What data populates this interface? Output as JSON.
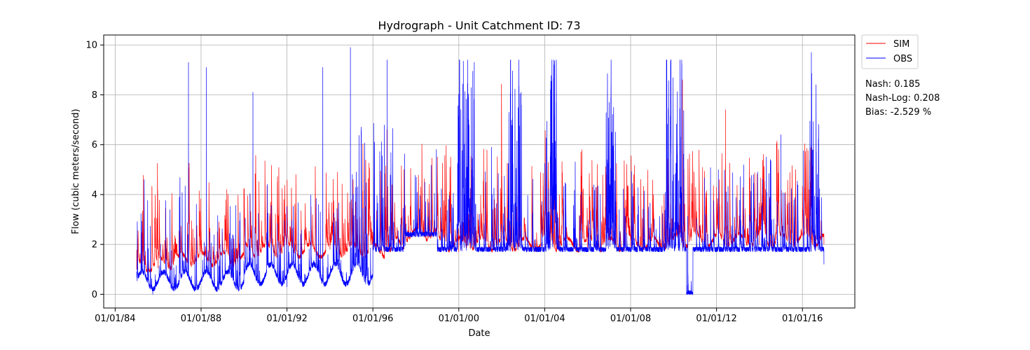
{
  "chart_data": {
    "type": "line",
    "title": "Hydrograph - Unit Catchment ID: 73",
    "xlabel": "Date",
    "ylabel": "Flow (cubic meters/second)",
    "x_ticks": [
      "01/01/84",
      "01/01/88",
      "01/01/92",
      "01/01/96",
      "01/01/00",
      "01/01/04",
      "01/01/08",
      "01/01/12",
      "01/01/16"
    ],
    "x_range": [
      "1983-06-20",
      "2018-06-10"
    ],
    "x_data_range": [
      "1985-01-01",
      "2017-01-01"
    ],
    "y_ticks": [
      0,
      2,
      4,
      6,
      8,
      10
    ],
    "ylim": [
      -0.55,
      10.4
    ],
    "grid": true,
    "legend_position": "outside-top-right",
    "series": [
      {
        "name": "SIM",
        "color": "#ff0000",
        "summary": "daily simulated flow; baseflow ~1.0-1.5 in 1985-1990, ~1.5-2.5 afterwards; peaks mostly 3-5, max ~8.6 in 2010",
        "keypoints": [
          {
            "x": "1985-01-01",
            "y": 1.0
          },
          {
            "x": "1986-01-01",
            "y": 1.05
          },
          {
            "x": "1987-01-01",
            "y": 1.5
          },
          {
            "x": "1988-01-01",
            "y": 1.6
          },
          {
            "x": "1990-01-01",
            "y": 1.4
          },
          {
            "x": "1992-01-01",
            "y": 2.0
          },
          {
            "x": "1994-01-01",
            "y": 1.8
          },
          {
            "x": "1996-01-01",
            "y": 1.8
          },
          {
            "x": "1998-01-01",
            "y": 2.3
          },
          {
            "x": "2000-01-01",
            "y": 1.7
          },
          {
            "x": "2002-01-01",
            "y": 1.9
          },
          {
            "x": "2004-01-01",
            "y": 1.9
          },
          {
            "x": "2006-01-01",
            "y": 1.8
          },
          {
            "x": "2008-01-01",
            "y": 1.9
          },
          {
            "x": "2010-06-01",
            "y": 8.6
          },
          {
            "x": "2012-06-01",
            "y": 7.4
          },
          {
            "x": "2014-01-01",
            "y": 2.0
          },
          {
            "x": "2016-06-01",
            "y": 2.2
          },
          {
            "x": "2017-01-01",
            "y": 2.0
          }
        ]
      },
      {
        "name": "OBS",
        "color": "#0000ff",
        "summary": "daily observed flow; low flows ~0.3-1.0 before 1996, ~1.5-2.5 afterwards; frequent spikes capped near 9.4; max ~9.9 in 1995; near 0 in late 2010",
        "keypoints": [
          {
            "x": "1985-01-01",
            "y": 0.9
          },
          {
            "x": "1985-10-01",
            "y": 0.0
          },
          {
            "x": "1987-06-01",
            "y": 9.3
          },
          {
            "x": "1988-04-01",
            "y": 9.1
          },
          {
            "x": "1990-06-01",
            "y": 8.1
          },
          {
            "x": "1992-01-01",
            "y": 0.3
          },
          {
            "x": "1993-09-01",
            "y": 9.1
          },
          {
            "x": "1994-12-15",
            "y": 9.9
          },
          {
            "x": "1996-09-01",
            "y": 9.4
          },
          {
            "x": "1998-06-01",
            "y": 4.5
          },
          {
            "x": "2000-06-01",
            "y": 9.4
          },
          {
            "x": "2002-06-01",
            "y": 9.4
          },
          {
            "x": "2004-06-01",
            "y": 9.4
          },
          {
            "x": "2007-01-01",
            "y": 7.7
          },
          {
            "x": "2009-09-01",
            "y": 9.4
          },
          {
            "x": "2010-09-01",
            "y": 0.0
          },
          {
            "x": "2015-01-01",
            "y": 6.4
          },
          {
            "x": "2016-06-01",
            "y": 9.7
          },
          {
            "x": "2017-01-01",
            "y": 1.2
          }
        ]
      }
    ]
  },
  "stats": {
    "nash": "Nash: 0.185",
    "nash_log": "Nash-Log: 0.208",
    "bias": "Bias: -2.529 %"
  }
}
